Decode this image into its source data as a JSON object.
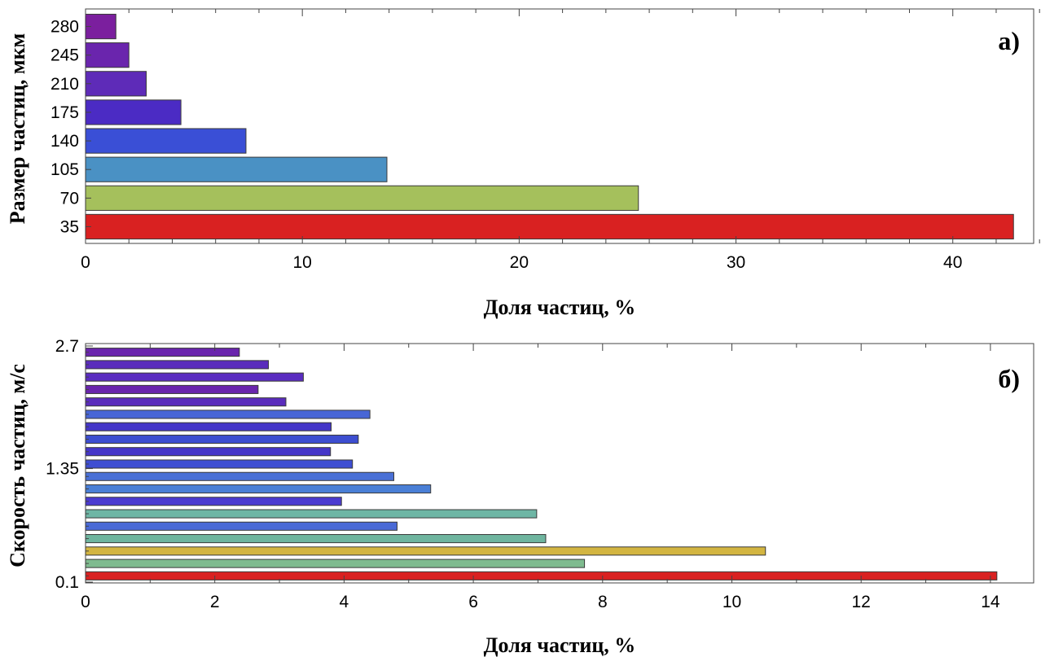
{
  "chart_data": [
    {
      "type": "bar",
      "orientation": "horizontal",
      "panel_label": "a)",
      "xlabel": "Доля частиц, %",
      "ylabel": "Размер частиц, мкм",
      "xlim": [
        0,
        44
      ],
      "xticks": [
        0,
        10,
        20,
        30,
        40
      ],
      "xtick_labels": [
        "0",
        "10",
        "20",
        "30",
        "40"
      ],
      "grid": false,
      "categories": [
        "35",
        "70",
        "105",
        "140",
        "175",
        "210",
        "245",
        "280"
      ],
      "values": [
        42.8,
        25.5,
        13.9,
        7.4,
        4.4,
        2.8,
        2.0,
        1.4
      ],
      "colors": [
        "#d92121",
        "#a5c05c",
        "#4a91c4",
        "#3a4fd6",
        "#4b2bc4",
        "#5e2bb8",
        "#6a25ad",
        "#7b1f9e"
      ]
    },
    {
      "type": "bar",
      "orientation": "horizontal",
      "panel_label": "б)",
      "xlabel": "Доля частиц, %",
      "ylabel": "Скорость частиц, м/с",
      "xlim": [
        0,
        14.6
      ],
      "xticks": [
        0,
        2,
        4,
        6,
        8,
        10,
        12,
        14
      ],
      "xtick_labels": [
        "0",
        "2",
        "4",
        "6",
        "8",
        "10",
        "12",
        "14"
      ],
      "ylim": [
        0.1,
        2.7
      ],
      "yticks": [
        0.1,
        1.35,
        2.7
      ],
      "ytick_labels": [
        "0.1",
        "1.35",
        "2.7"
      ],
      "grid": false,
      "values": [
        14.1,
        7.72,
        10.52,
        7.12,
        4.82,
        6.98,
        3.96,
        5.34,
        4.77,
        4.13,
        3.79,
        4.22,
        3.8,
        4.4,
        3.1,
        2.67,
        3.37,
        2.83,
        2.38
      ],
      "colors": [
        "#d92121",
        "#7fbb8f",
        "#d3b541",
        "#6fb59f",
        "#4a6ad6",
        "#6eb6a5",
        "#4a3ad0",
        "#4a7fd6",
        "#4a70d6",
        "#3e4ed2",
        "#4536c8",
        "#3d4ed0",
        "#4436c8",
        "#4866d6",
        "#5a2cbc",
        "#6a25ad",
        "#5a2cc0",
        "#5a2cbc",
        "#6a25ad"
      ]
    }
  ]
}
